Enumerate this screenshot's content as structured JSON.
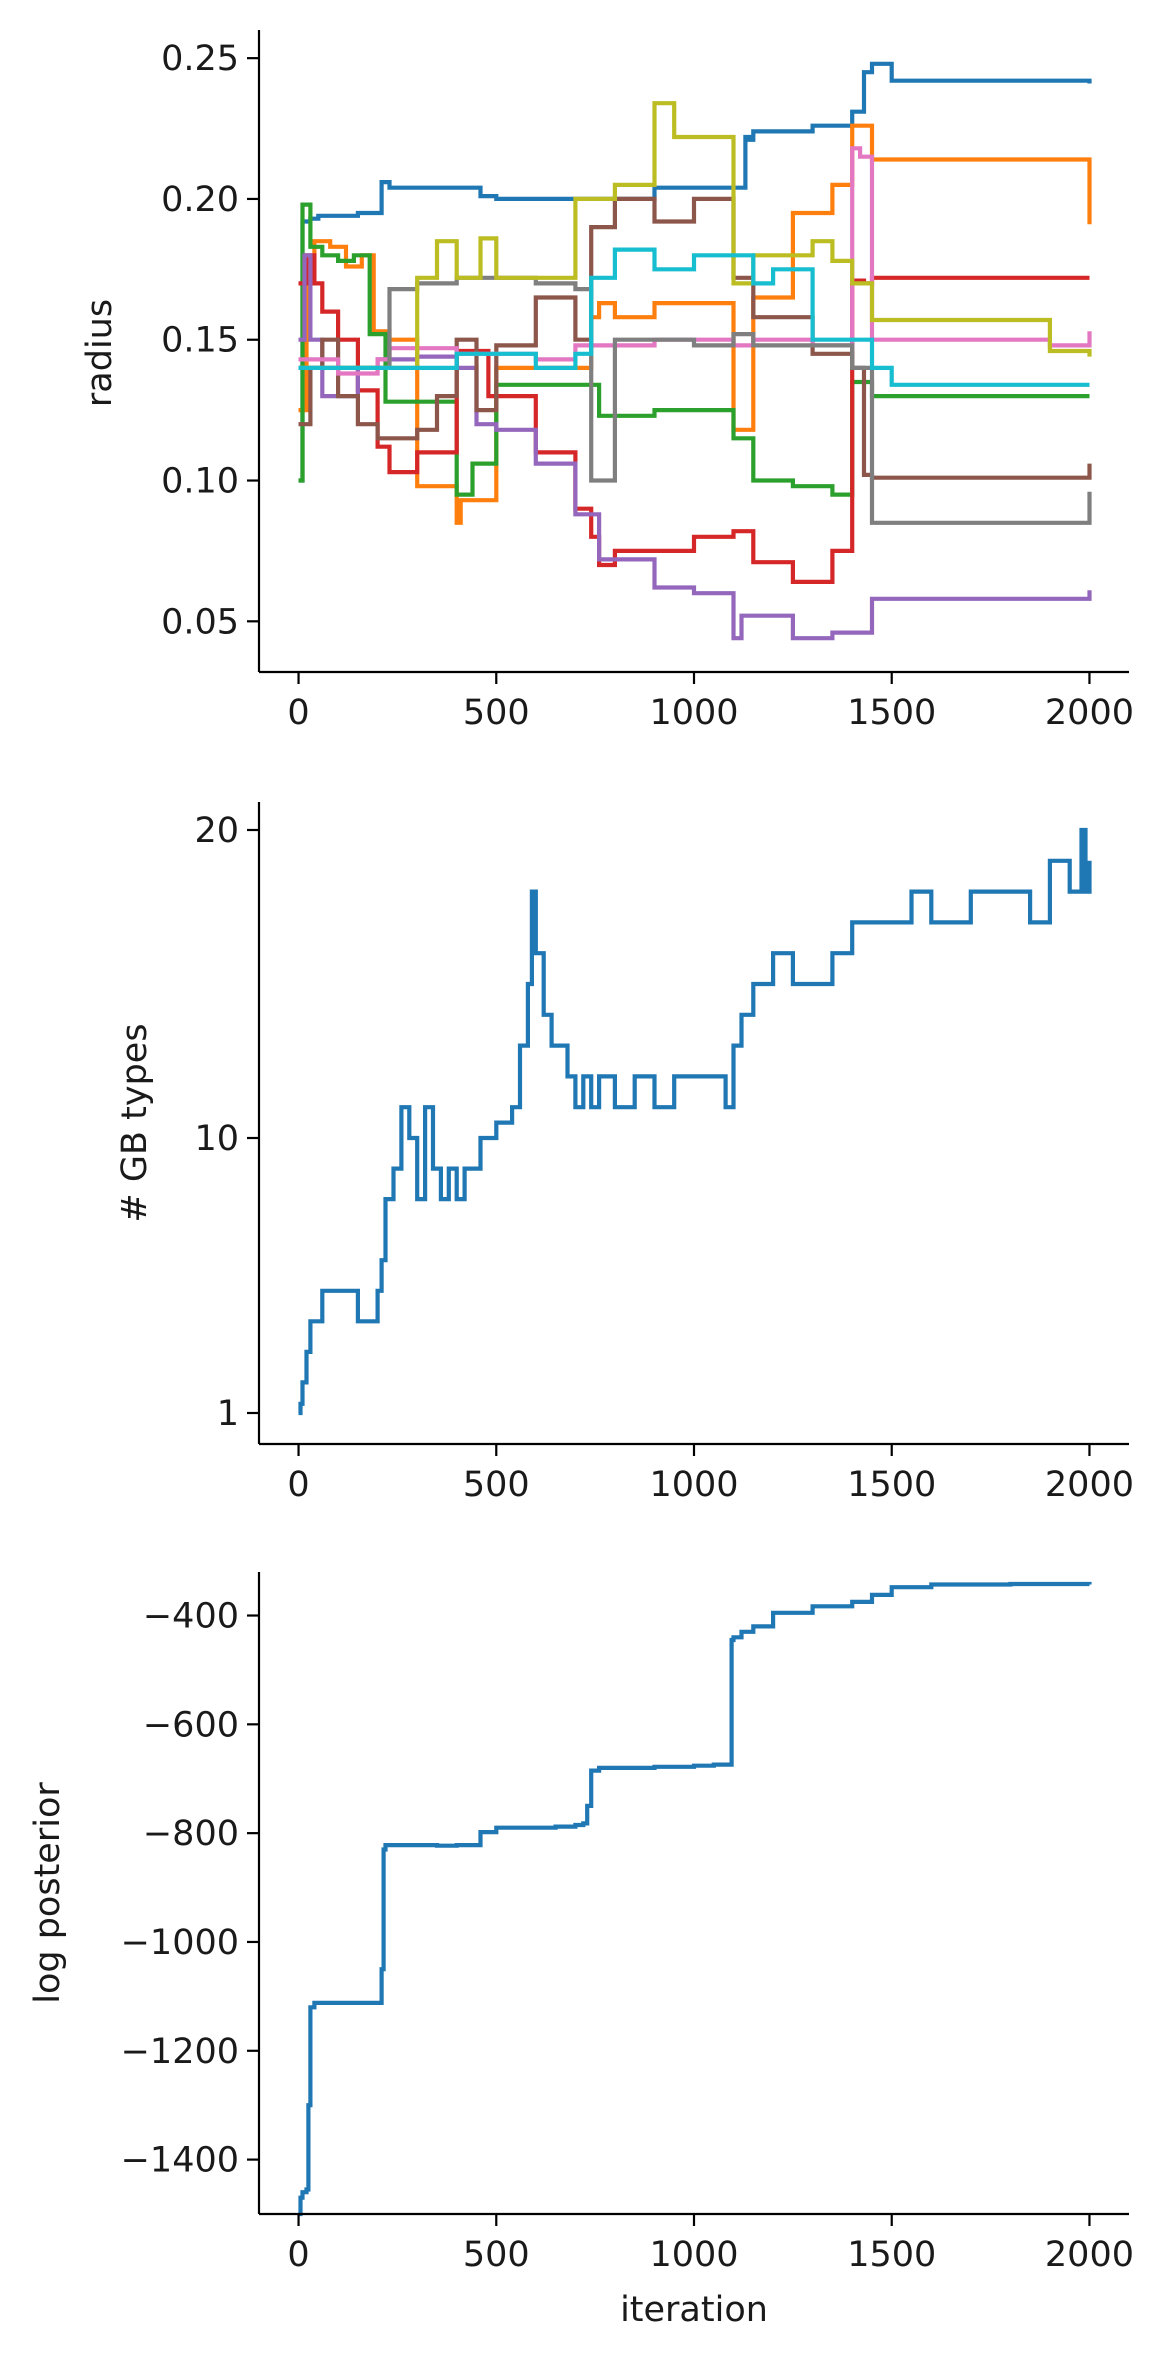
{
  "figure": {
    "panels": [
      "radius",
      "gb_types",
      "log_posterior"
    ]
  },
  "chart_data": [
    {
      "type": "line",
      "ylabel": "radius",
      "xlabel": "",
      "xlim": [
        -100,
        2100
      ],
      "ylim": [
        0.032,
        0.26
      ],
      "xticks": [
        0,
        500,
        1000,
        1500,
        2000
      ],
      "xtick_labels": [
        "0",
        "500",
        "1000",
        "1500",
        "2000"
      ],
      "yticks": [
        0.05,
        0.1,
        0.15,
        0.2,
        0.25
      ],
      "ytick_labels": [
        "0.05",
        "0.10",
        "0.15",
        "0.20",
        "0.25"
      ],
      "grid": false,
      "series": [
        {
          "color": "#1f77b4",
          "x": [
            0,
            10,
            30,
            50,
            100,
            150,
            210,
            230,
            300,
            460,
            500,
            700,
            900,
            1100,
            1130,
            1140,
            1150,
            1300,
            1400,
            1430,
            1450,
            1500,
            2000
          ],
          "y": [
            0.1,
            0.192,
            0.193,
            0.194,
            0.194,
            0.195,
            0.206,
            0.204,
            0.204,
            0.201,
            0.2,
            0.2,
            0.204,
            0.204,
            0.222,
            0.221,
            0.224,
            0.226,
            0.231,
            0.245,
            0.248,
            0.242,
            0.241
          ]
        },
        {
          "color": "#ff7f0e",
          "x": [
            0,
            20,
            40,
            80,
            120,
            160,
            190,
            230,
            300,
            400,
            410,
            440,
            500,
            700,
            740,
            760,
            800,
            900,
            1100,
            1150,
            1250,
            1350,
            1400,
            1450,
            1900,
            2000
          ],
          "y": [
            0.125,
            0.178,
            0.185,
            0.183,
            0.176,
            0.18,
            0.153,
            0.15,
            0.098,
            0.085,
            0.093,
            0.093,
            0.14,
            0.14,
            0.158,
            0.163,
            0.158,
            0.163,
            0.118,
            0.165,
            0.195,
            0.205,
            0.226,
            0.214,
            0.214,
            0.191
          ]
        },
        {
          "color": "#2ca02c",
          "x": [
            0,
            10,
            30,
            60,
            100,
            140,
            180,
            220,
            300,
            400,
            440,
            500,
            700,
            760,
            900,
            1100,
            1150,
            1250,
            1350,
            1400,
            1450,
            1900,
            2000
          ],
          "y": [
            0.1,
            0.198,
            0.183,
            0.18,
            0.178,
            0.18,
            0.152,
            0.128,
            0.128,
            0.095,
            0.106,
            0.134,
            0.134,
            0.123,
            0.125,
            0.115,
            0.1,
            0.098,
            0.095,
            0.135,
            0.13,
            0.13,
            0.13
          ]
        },
        {
          "color": "#d62728",
          "x": [
            0,
            20,
            40,
            60,
            100,
            150,
            200,
            230,
            300,
            400,
            480,
            600,
            700,
            740,
            760,
            800,
            1000,
            1100,
            1150,
            1250,
            1350,
            1400,
            1430,
            1450,
            2000
          ],
          "y": [
            0.17,
            0.18,
            0.17,
            0.16,
            0.15,
            0.132,
            0.112,
            0.103,
            0.11,
            0.146,
            0.13,
            0.11,
            0.09,
            0.08,
            0.07,
            0.075,
            0.08,
            0.082,
            0.071,
            0.064,
            0.075,
            0.171,
            0.17,
            0.172,
            0.172
          ]
        },
        {
          "color": "#9467bd",
          "x": [
            0,
            15,
            30,
            60,
            100,
            150,
            200,
            300,
            400,
            450,
            500,
            600,
            700,
            760,
            900,
            1000,
            1100,
            1120,
            1200,
            1250,
            1350,
            1450,
            2000
          ],
          "y": [
            0.15,
            0.18,
            0.15,
            0.13,
            0.13,
            0.14,
            0.143,
            0.144,
            0.14,
            0.12,
            0.118,
            0.106,
            0.088,
            0.072,
            0.062,
            0.06,
            0.044,
            0.052,
            0.052,
            0.044,
            0.046,
            0.058,
            0.061
          ]
        },
        {
          "color": "#8c564b",
          "x": [
            0,
            30,
            60,
            100,
            150,
            200,
            300,
            350,
            400,
            450,
            500,
            600,
            700,
            740,
            800,
            900,
            1000,
            1100,
            1150,
            1300,
            1400,
            1430,
            1450,
            2000
          ],
          "y": [
            0.12,
            0.14,
            0.15,
            0.13,
            0.12,
            0.115,
            0.118,
            0.13,
            0.15,
            0.125,
            0.148,
            0.165,
            0.15,
            0.19,
            0.2,
            0.192,
            0.2,
            0.172,
            0.158,
            0.145,
            0.14,
            0.102,
            0.101,
            0.106
          ]
        },
        {
          "color": "#e377c2",
          "x": [
            0,
            100,
            200,
            230,
            300,
            400,
            500,
            600,
            700,
            900,
            1100,
            1150,
            1300,
            1400,
            1420,
            1450,
            1900,
            2000
          ],
          "y": [
            0.143,
            0.138,
            0.143,
            0.147,
            0.147,
            0.145,
            0.145,
            0.143,
            0.148,
            0.15,
            0.148,
            0.15,
            0.148,
            0.218,
            0.215,
            0.15,
            0.148,
            0.153
          ]
        },
        {
          "color": "#7f7f7f",
          "x": [
            0,
            200,
            230,
            300,
            400,
            500,
            600,
            700,
            740,
            800,
            1000,
            1100,
            1150,
            1350,
            1400,
            1450,
            1900,
            2000
          ],
          "y": [
            0.14,
            0.14,
            0.168,
            0.17,
            0.172,
            0.172,
            0.17,
            0.168,
            0.1,
            0.15,
            0.148,
            0.152,
            0.148,
            0.148,
            0.14,
            0.085,
            0.085,
            0.096
          ]
        },
        {
          "color": "#bcbd22",
          "x": [
            0,
            300,
            350,
            400,
            460,
            500,
            600,
            700,
            800,
            900,
            950,
            1000,
            1100,
            1150,
            1300,
            1350,
            1400,
            1450,
            1900,
            2000
          ],
          "y": [
            0.14,
            0.172,
            0.185,
            0.172,
            0.186,
            0.172,
            0.172,
            0.2,
            0.205,
            0.234,
            0.222,
            0.222,
            0.17,
            0.18,
            0.185,
            0.178,
            0.17,
            0.157,
            0.146,
            0.144
          ]
        },
        {
          "color": "#17becf",
          "x": [
            0,
            400,
            500,
            600,
            700,
            740,
            800,
            900,
            1000,
            1100,
            1150,
            1200,
            1300,
            1450,
            1500,
            2000
          ],
          "y": [
            0.14,
            0.145,
            0.145,
            0.14,
            0.145,
            0.172,
            0.182,
            0.175,
            0.18,
            0.18,
            0.17,
            0.175,
            0.15,
            0.14,
            0.134,
            0.134
          ]
        }
      ]
    },
    {
      "type": "line",
      "ylabel": "# GB types",
      "xlabel": "",
      "xlim": [
        -100,
        2100
      ],
      "xticks": [
        0,
        500,
        1000,
        1500,
        2000
      ],
      "xtick_labels": [
        "0",
        "500",
        "1000",
        "1500",
        "2000"
      ],
      "ytick_labels": [
        "1",
        "10",
        "20"
      ],
      "ytick_positions": [
        1,
        10,
        20
      ],
      "scale": "piecewise: 1–10 and 10–20 ticks are evenly spaced as printed",
      "grid": false,
      "series": [
        {
          "color": "#1f77b4",
          "x": [
            0,
            5,
            10,
            20,
            30,
            60,
            100,
            150,
            200,
            210,
            220,
            240,
            260,
            280,
            300,
            320,
            340,
            360,
            380,
            400,
            420,
            440,
            460,
            480,
            500,
            520,
            540,
            560,
            580,
            590,
            600,
            620,
            640,
            660,
            680,
            700,
            720,
            740,
            760,
            800,
            850,
            900,
            950,
            1000,
            1050,
            1080,
            1100,
            1120,
            1150,
            1200,
            1250,
            1300,
            1350,
            1400,
            1450,
            1500,
            1550,
            1600,
            1700,
            1800,
            1850,
            1900,
            1950,
            1980,
            1990,
            2000
          ],
          "y": [
            1,
            1.3,
            2,
            3,
            4,
            5,
            5,
            4,
            5,
            6,
            8,
            9,
            11,
            10,
            8,
            11,
            9,
            8,
            9,
            8,
            9,
            9,
            10,
            10,
            10.5,
            10.5,
            11,
            13,
            15,
            18,
            16,
            14,
            13,
            13,
            12,
            11,
            12,
            11,
            12,
            11,
            12,
            11,
            12,
            12,
            12,
            11,
            13,
            14,
            15,
            16,
            15,
            15,
            16,
            17,
            17,
            17,
            18,
            17,
            18,
            18,
            17,
            19,
            18,
            20,
            18,
            19
          ]
        }
      ]
    },
    {
      "type": "line",
      "ylabel": "log posterior",
      "xlabel": "iteration",
      "xlim": [
        -100,
        2100
      ],
      "ylim": [
        -1500,
        -320
      ],
      "xticks": [
        0,
        500,
        1000,
        1500,
        2000
      ],
      "xtick_labels": [
        "0",
        "500",
        "1000",
        "1500",
        "2000"
      ],
      "yticks": [
        -1400,
        -1200,
        -1000,
        -800,
        -600,
        -400
      ],
      "ytick_labels": [
        "−1400",
        "−1200",
        "−1000",
        "−800",
        "−600",
        "−400"
      ],
      "grid": false,
      "series": [
        {
          "color": "#1f77b4",
          "x": [
            0,
            5,
            10,
            20,
            25,
            30,
            40,
            100,
            150,
            200,
            210,
            215,
            220,
            260,
            300,
            350,
            400,
            440,
            460,
            500,
            600,
            650,
            700,
            720,
            730,
            740,
            760,
            800,
            900,
            1000,
            1050,
            1090,
            1095,
            1100,
            1120,
            1150,
            1200,
            1300,
            1400,
            1450,
            1500,
            1600,
            1800,
            2000
          ],
          "y": [
            -1500,
            -1470,
            -1460,
            -1455,
            -1300,
            -1120,
            -1112,
            -1112,
            -1112,
            -1112,
            -1050,
            -830,
            -822,
            -822,
            -822,
            -823,
            -822,
            -822,
            -798,
            -790,
            -790,
            -788,
            -785,
            -782,
            -750,
            -685,
            -680,
            -680,
            -678,
            -676,
            -674,
            -674,
            -445,
            -440,
            -430,
            -420,
            -395,
            -383,
            -375,
            -362,
            -348,
            -343,
            -342,
            -343
          ]
        }
      ]
    }
  ]
}
